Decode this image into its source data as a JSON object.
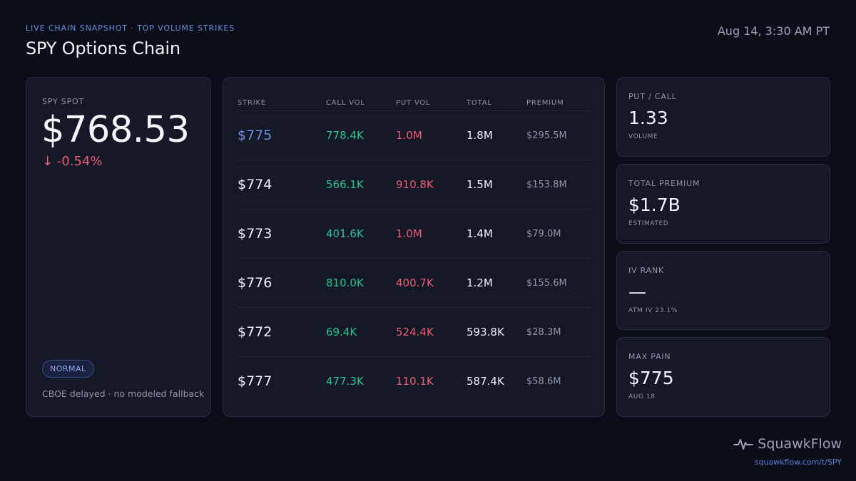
{
  "header": {
    "eyebrow": "LIVE CHAIN SNAPSHOT · TOP VOLUME STRIKES",
    "title": "SPY Options Chain",
    "timestamp": "Aug 14, 3:30 AM PT"
  },
  "spot": {
    "label": "SPY SPOT",
    "price": "$768.53",
    "change": "↓ -0.54%",
    "status_badge": "NORMAL",
    "source_note": "CBOE delayed · no modeled fallback"
  },
  "chain": {
    "columns": [
      "STRIKE",
      "CALL VOL",
      "PUT VOL",
      "TOTAL",
      "PREMIUM"
    ],
    "rows": [
      {
        "strike": "$775",
        "call_vol": "778.4K",
        "put_vol": "1.0M",
        "total": "1.8M",
        "premium": "$295.5M"
      },
      {
        "strike": "$774",
        "call_vol": "566.1K",
        "put_vol": "910.8K",
        "total": "1.5M",
        "premium": "$153.8M"
      },
      {
        "strike": "$773",
        "call_vol": "401.6K",
        "put_vol": "1.0M",
        "total": "1.4M",
        "premium": "$79.0M"
      },
      {
        "strike": "$776",
        "call_vol": "810.0K",
        "put_vol": "400.7K",
        "total": "1.2M",
        "premium": "$155.6M"
      },
      {
        "strike": "$772",
        "call_vol": "69.4K",
        "put_vol": "524.4K",
        "total": "593.8K",
        "premium": "$28.3M"
      },
      {
        "strike": "$777",
        "call_vol": "477.3K",
        "put_vol": "110.1K",
        "total": "587.4K",
        "premium": "$58.6M"
      }
    ]
  },
  "stats": {
    "put_call": {
      "label": "PUT / CALL",
      "value": "1.33",
      "sub": "VOLUME"
    },
    "total_premium": {
      "label": "TOTAL PREMIUM",
      "value": "$1.7B",
      "sub": "ESTIMATED"
    },
    "iv_rank": {
      "label": "IV RANK",
      "value": "—",
      "sub": "ATM IV 23.1%"
    },
    "max_pain": {
      "label": "MAX PAIN",
      "value": "$775",
      "sub": "AUG 18"
    }
  },
  "brand": {
    "name": "SquawkFlow",
    "icon": "pulse-icon",
    "url": "squawkflow.com/t/SPY"
  },
  "colors": {
    "accent": "#6b8fe0",
    "call": "#25c48f",
    "put": "#ef5a73",
    "background": "#0b0d18",
    "card": "#141827"
  }
}
